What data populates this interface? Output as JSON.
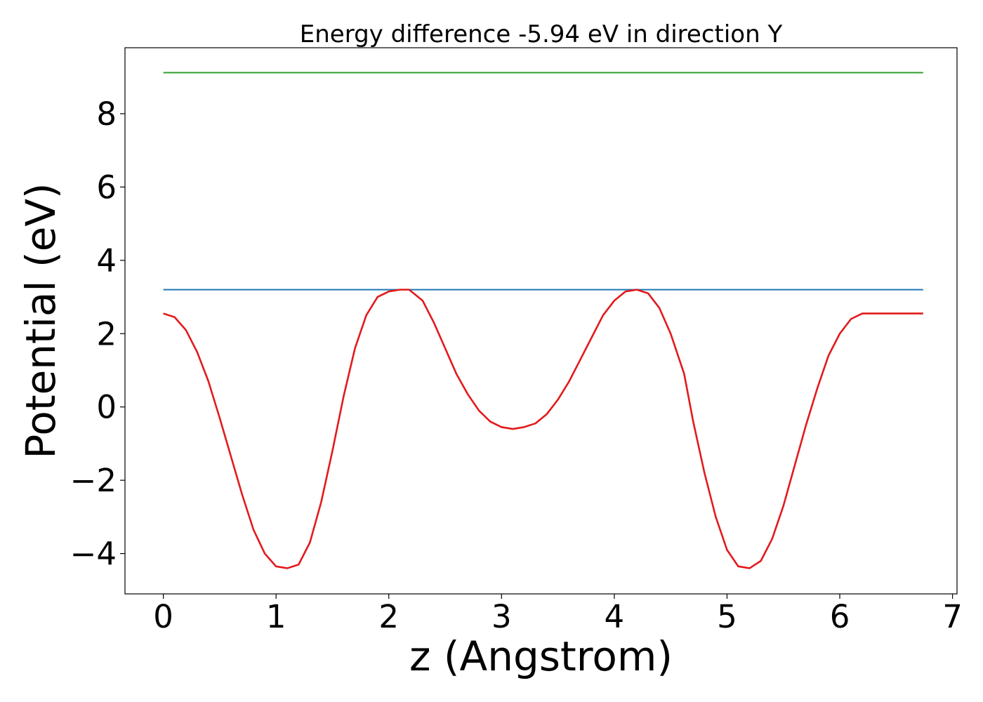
{
  "chart_data": {
    "type": "line",
    "title": "Energy difference -5.94 eV in direction Y",
    "xlabel": "z (Angstrom)",
    "ylabel": "Potential (eV)",
    "xlim": [
      -0.34,
      7.04
    ],
    "ylim": [
      -5.1,
      9.8
    ],
    "xticks": [
      0,
      1,
      2,
      3,
      4,
      5,
      6,
      7
    ],
    "yticks": [
      -4,
      -2,
      0,
      2,
      4,
      6,
      8
    ],
    "xtick_labels": [
      "0",
      "1",
      "2",
      "3",
      "4",
      "5",
      "6",
      "7"
    ],
    "ytick_labels": [
      "−4",
      "−2",
      "0",
      "2",
      "4",
      "6",
      "8"
    ],
    "grid": false,
    "series": [
      {
        "color": "#2ca02c",
        "x": [
          0.0,
          6.74
        ],
        "y": [
          9.12,
          9.12
        ]
      },
      {
        "color": "#1f77b4",
        "x": [
          0.0,
          6.74
        ],
        "y": [
          3.2,
          3.2
        ]
      },
      {
        "color": "#e31a1c",
        "x": [
          0.0,
          0.1,
          0.2,
          0.3,
          0.4,
          0.5,
          0.6,
          0.7,
          0.8,
          0.9,
          1.0,
          1.1,
          1.2,
          1.3,
          1.4,
          1.5,
          1.6,
          1.7,
          1.8,
          1.9,
          2.0,
          2.1,
          2.18,
          2.3,
          2.4,
          2.5,
          2.6,
          2.7,
          2.8,
          2.9,
          3.0,
          3.1,
          3.2,
          3.3,
          3.4,
          3.5,
          3.6,
          3.7,
          3.8,
          3.9,
          4.0,
          4.1,
          4.2,
          4.3,
          4.4,
          4.5,
          4.62,
          4.7,
          4.8,
          4.9,
          5.0,
          5.1,
          5.2,
          5.3,
          5.4,
          5.5,
          5.6,
          5.7,
          5.8,
          5.9,
          6.0,
          6.1,
          6.2,
          6.3,
          6.4,
          6.5,
          6.6,
          6.74
        ],
        "y": [
          2.55,
          2.45,
          2.1,
          1.5,
          0.7,
          -0.3,
          -1.35,
          -2.4,
          -3.35,
          -4.0,
          -4.35,
          -4.4,
          -4.3,
          -3.7,
          -2.6,
          -1.2,
          0.3,
          1.6,
          2.5,
          3.0,
          3.15,
          3.2,
          3.2,
          2.9,
          2.3,
          1.6,
          0.9,
          0.35,
          -0.1,
          -0.4,
          -0.55,
          -0.6,
          -0.55,
          -0.45,
          -0.2,
          0.2,
          0.7,
          1.3,
          1.9,
          2.5,
          2.9,
          3.15,
          3.2,
          3.1,
          2.7,
          2.0,
          0.9,
          -0.4,
          -1.8,
          -3.0,
          -3.9,
          -4.35,
          -4.4,
          -4.2,
          -3.6,
          -2.7,
          -1.6,
          -0.5,
          0.5,
          1.4,
          2.0,
          2.4,
          2.55,
          2.55,
          2.55,
          2.55,
          2.55,
          2.55
        ]
      }
    ]
  }
}
